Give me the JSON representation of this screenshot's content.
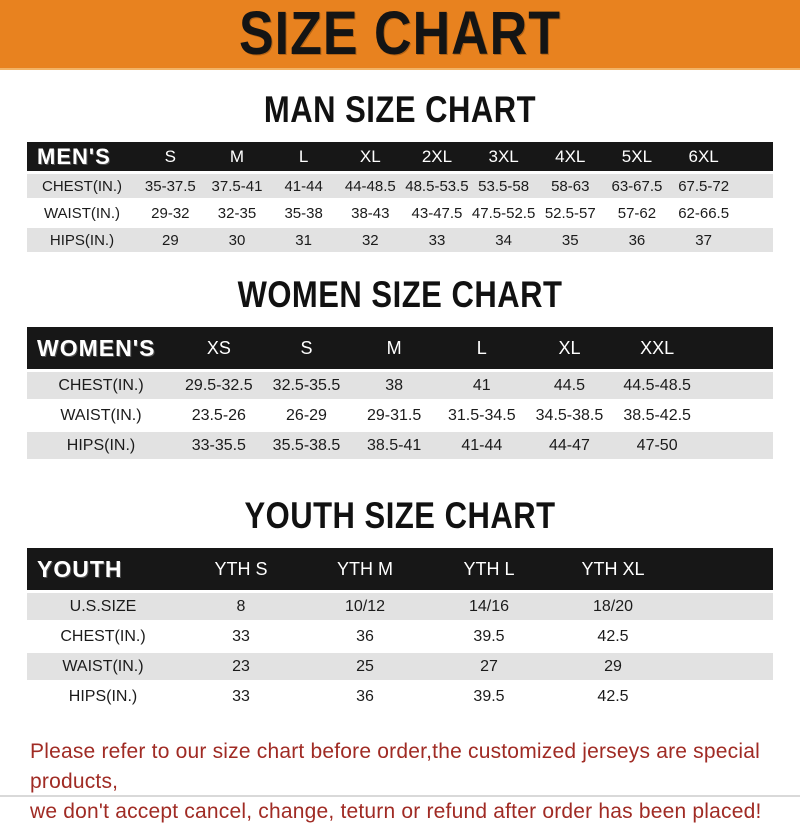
{
  "banner": {
    "title": "SIZE CHART"
  },
  "sections": [
    {
      "title": "MAN SIZE CHART",
      "header_label": "MEN'S",
      "columns": [
        "S",
        "M",
        "L",
        "XL",
        "2XL",
        "3XL",
        "4XL",
        "5XL",
        "6XL"
      ],
      "rows": [
        {
          "label": "CHEST(IN.)",
          "values": [
            "35-37.5",
            "37.5-41",
            "41-44",
            "44-48.5",
            "48.5-53.5",
            "53.5-58",
            "58-63",
            "63-67.5",
            "67.5-72"
          ]
        },
        {
          "label": "WAIST(IN.)",
          "values": [
            "29-32",
            "32-35",
            "35-38",
            "38-43",
            "43-47.5",
            "47.5-52.5",
            "52.5-57",
            "57-62",
            "62-66.5"
          ]
        },
        {
          "label": "HIPS(IN.)",
          "values": [
            "29",
            "30",
            "31",
            "32",
            "33",
            "34",
            "35",
            "36",
            "37"
          ]
        }
      ]
    },
    {
      "title": "WOMEN SIZE CHART",
      "header_label": "WOMEN'S",
      "columns": [
        "XS",
        "S",
        "M",
        "L",
        "XL",
        "XXL"
      ],
      "rows": [
        {
          "label": "CHEST(IN.)",
          "values": [
            "29.5-32.5",
            "32.5-35.5",
            "38",
            "41",
            "44.5",
            "44.5-48.5"
          ]
        },
        {
          "label": "WAIST(IN.)",
          "values": [
            "23.5-26",
            "26-29",
            "29-31.5",
            "31.5-34.5",
            "34.5-38.5",
            "38.5-42.5"
          ]
        },
        {
          "label": "HIPS(IN.)",
          "values": [
            "33-35.5",
            "35.5-38.5",
            "38.5-41",
            "41-44",
            "44-47",
            "47-50"
          ]
        }
      ]
    },
    {
      "title": "YOUTH SIZE CHART",
      "header_label": "YOUTH",
      "columns": [
        "YTH S",
        "YTH M",
        "YTH L",
        "YTH XL"
      ],
      "rows": [
        {
          "label": "U.S.SIZE",
          "values": [
            "8",
            "10/12",
            "14/16",
            "18/20"
          ]
        },
        {
          "label": "CHEST(IN.)",
          "values": [
            "33",
            "36",
            "39.5",
            "42.5"
          ]
        },
        {
          "label": "WAIST(IN.)",
          "values": [
            "23",
            "25",
            "27",
            "29"
          ]
        },
        {
          "label": "HIPS(IN.)",
          "values": [
            "33",
            "36",
            "39.5",
            "42.5"
          ]
        }
      ]
    }
  ],
  "footer": {
    "line1": "Please refer to our size chart before order,the customized jerseys are special products,",
    "line2": "we don't accept cancel, change, teturn or refund after order has been placed!"
  },
  "colors": {
    "banner_orange": "#e8821f",
    "table_header_black": "#171717",
    "row_grey": "#e2e2e2",
    "footer_red": "#a02b24"
  }
}
